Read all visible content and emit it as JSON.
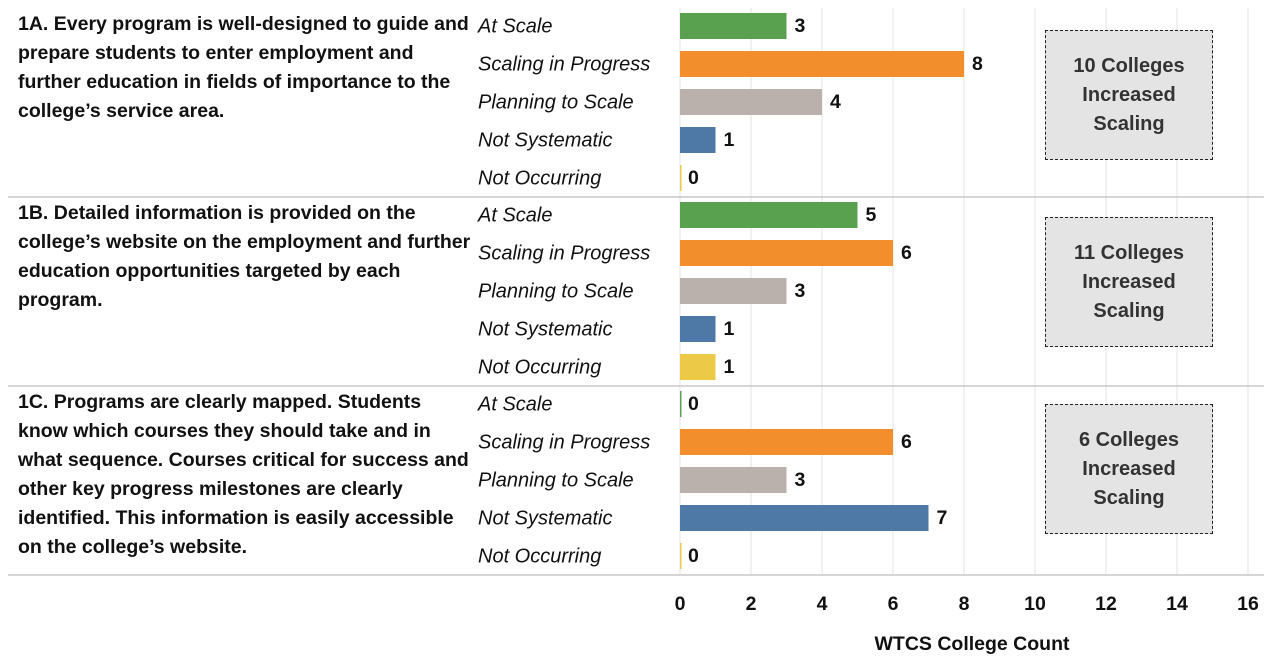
{
  "chart_data": {
    "type": "bar",
    "orientation": "horizontal",
    "categories": [
      "At Scale",
      "Scaling in Progress",
      "Planning to Scale",
      "Not Systematic",
      "Not Occurring"
    ],
    "colors": [
      "#59a14f",
      "#f28e2b",
      "#bab0ac",
      "#4e79a7",
      "#edc948"
    ],
    "groups": [
      {
        "label": "1A. Every program is well-designed to guide and prepare students to enter employment and further education in fields of importance to the college’s service area.",
        "values": [
          3,
          8,
          4,
          1,
          0
        ],
        "callout": "10 Colleges Increased Scaling"
      },
      {
        "label": "1B. Detailed information is provided on the college’s website on the employment and further education opportunities targeted by each program.",
        "values": [
          5,
          6,
          3,
          1,
          1
        ],
        "callout": "11 Colleges Increased Scaling"
      },
      {
        "label": "1C. Programs are clearly mapped. Students know which courses they should take and in what sequence. Courses critical for success and other key progress milestones are clearly identified. This information is easily accessible on the college’s website.",
        "values": [
          0,
          6,
          3,
          7,
          0
        ],
        "callout": "6 Colleges Increased Scaling"
      }
    ],
    "xlabel": "WTCS College Count",
    "xlim": [
      0,
      16
    ],
    "xticks": [
      0,
      2,
      4,
      6,
      8,
      10,
      12,
      14,
      16
    ],
    "grid": true
  }
}
